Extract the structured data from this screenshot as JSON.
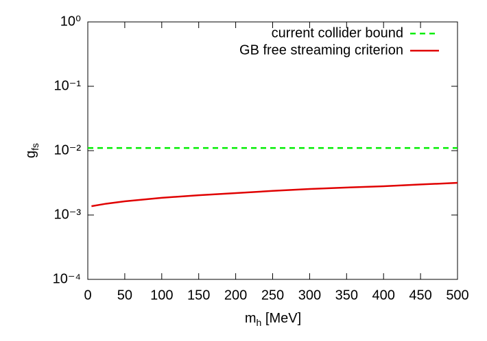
{
  "chart_data": {
    "type": "line",
    "xlabel": {
      "text": "m",
      "subscript": "h",
      "suffix": " [MeV]"
    },
    "ylabel": {
      "text": "g",
      "subscript": "fs"
    },
    "xlim": [
      0,
      500
    ],
    "xticks": [
      0,
      50,
      100,
      150,
      200,
      250,
      300,
      350,
      400,
      450,
      500
    ],
    "ylim": [
      0.0001,
      1
    ],
    "log_y": true,
    "yticks": [
      {
        "value": 0.0001,
        "label": "10⁻⁴"
      },
      {
        "value": 0.001,
        "label": "10⁻³"
      },
      {
        "value": 0.01,
        "label": "10⁻²"
      },
      {
        "value": 0.1,
        "label": "10⁻¹"
      },
      {
        "value": 1,
        "label": "10⁰"
      }
    ],
    "legend": "upper right",
    "series": [
      {
        "name": "current collider bound",
        "color": "#00ee00",
        "dashed": true,
        "x": [
          0,
          500
        ],
        "values": [
          0.011,
          0.011
        ]
      },
      {
        "name": "GB free streaming criterion",
        "color": "#e00000",
        "dashed": false,
        "x": [
          5,
          25,
          50,
          100,
          150,
          200,
          250,
          300,
          350,
          400,
          450,
          500
        ],
        "values": [
          0.00137,
          0.0015,
          0.00163,
          0.00185,
          0.00203,
          0.00219,
          0.00237,
          0.00254,
          0.00267,
          0.0028,
          0.00298,
          0.00316
        ]
      }
    ]
  }
}
